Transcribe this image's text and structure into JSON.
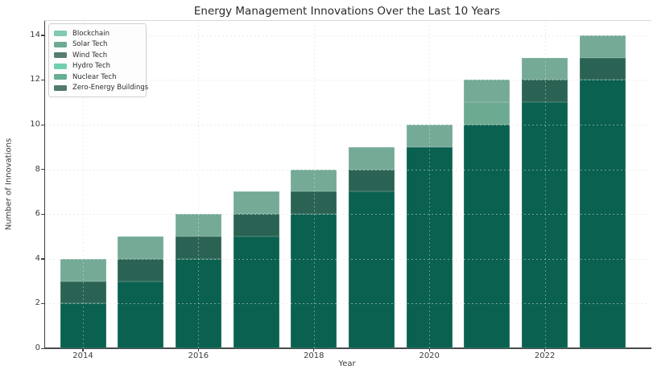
{
  "title": "Energy Management Innovations Over the Last 10 Years",
  "axes": {
    "xlabel": "Year",
    "ylabel": "Number of Innovations",
    "yticks": [
      0,
      2,
      4,
      6,
      8,
      10,
      12,
      14
    ],
    "xtick_labels": [
      "2014",
      "2016",
      "2018",
      "2020",
      "2022"
    ]
  },
  "legend": {
    "position": "upper left",
    "items": [
      "Blockchain",
      "Solar Tech",
      "Wind Tech",
      "Hydro Tech",
      "Nuclear Tech",
      "Zero-Energy Buildings"
    ]
  },
  "chart_data": {
    "type": "bar",
    "stacked": true,
    "title": "Energy Management Innovations Over the Last 10 Years",
    "xlabel": "Year",
    "ylabel": "Number of Innovations",
    "categories": [
      "2014",
      "2015",
      "2016",
      "2017",
      "2018",
      "2019",
      "2020",
      "2021",
      "2022",
      "2023"
    ],
    "series": [
      {
        "name": "Blockchain",
        "legend_color": "#7fccae",
        "bar_color": "#7fccae",
        "values": [
          0,
          0,
          0,
          0,
          0,
          0,
          0,
          0,
          0,
          0
        ]
      },
      {
        "name": "Solar Tech",
        "legend_color": "#6fab93",
        "bar_color": "#74aa96",
        "values": [
          1,
          1,
          1,
          1,
          1,
          1,
          1,
          1,
          1,
          1
        ]
      },
      {
        "name": "Wind Tech",
        "legend_color": "#557e6e",
        "bar_color": "#2a6353",
        "values": [
          1,
          1,
          1,
          1,
          1,
          1,
          0,
          0,
          1,
          1
        ]
      },
      {
        "name": "Hydro Tech",
        "legend_color": "#71cfb1",
        "bar_color": "#71cfb1",
        "values": [
          0,
          0,
          0,
          0,
          0,
          0,
          0,
          0,
          0,
          0
        ]
      },
      {
        "name": "Nuclear Tech",
        "legend_color": "#66b094",
        "bar_color": "#6cab92",
        "values": [
          0,
          0,
          0,
          0,
          0,
          0,
          0,
          1,
          0,
          0
        ]
      },
      {
        "name": "Zero-Energy Buildings",
        "legend_color": "#527c6a",
        "bar_color": "#0b6150",
        "values": [
          2,
          3,
          4,
          5,
          6,
          7,
          9,
          10,
          11,
          12
        ]
      }
    ],
    "totals": [
      4,
      5,
      6,
      7,
      8,
      9,
      10,
      12,
      13,
      14
    ],
    "ylim": [
      0,
      14.6
    ],
    "grid": "dotted",
    "legend_position": "upper left",
    "stack_order": "first legend item on top"
  }
}
